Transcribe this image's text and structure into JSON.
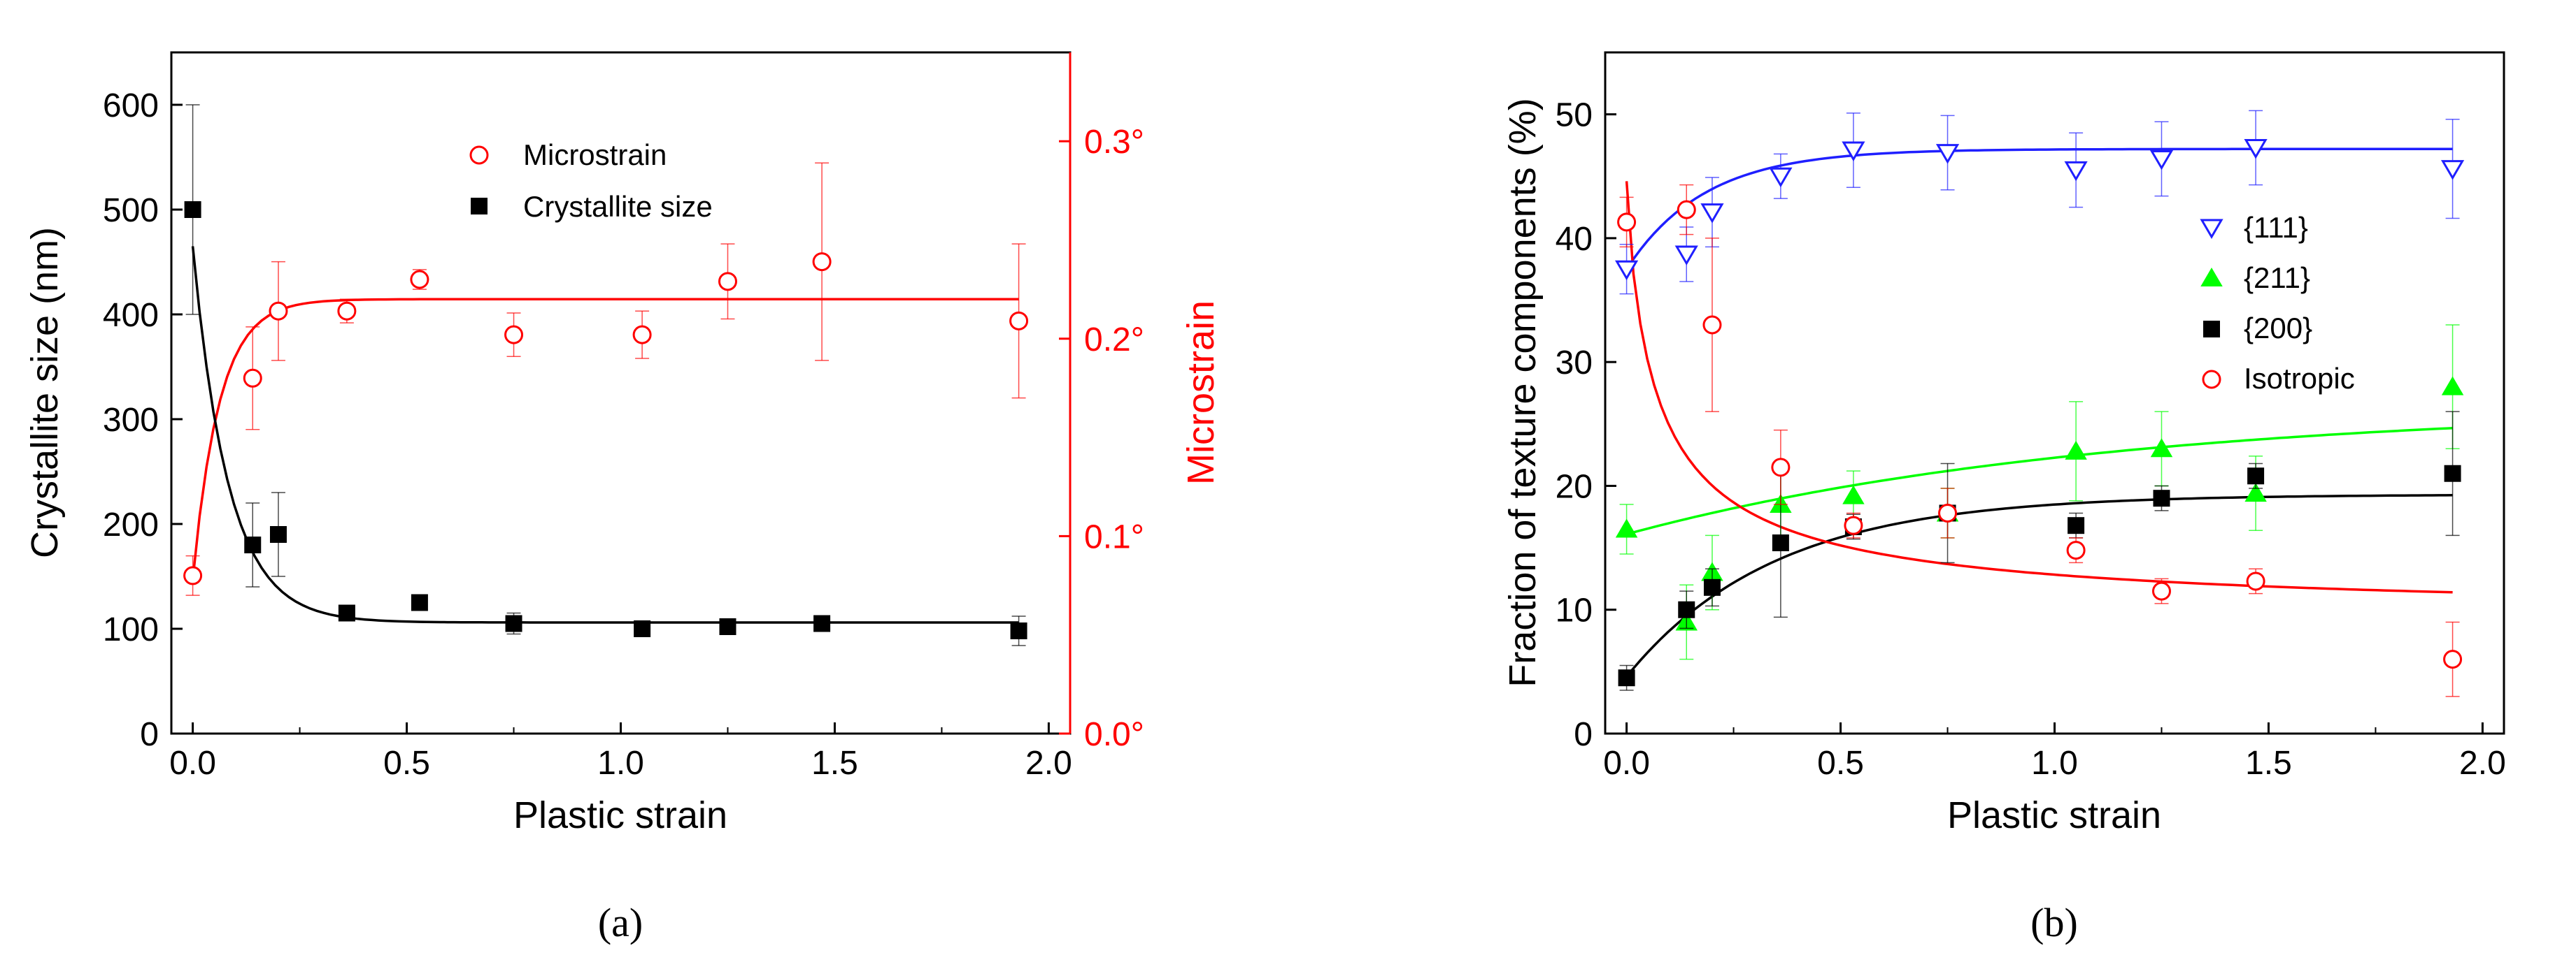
{
  "chart_data": [
    {
      "type": "scatter",
      "caption": "(a)",
      "xlabel": "Plastic strain",
      "ylabel": "Crystallite size (nm)",
      "y2label": "Microstrain",
      "xlim": [
        -0.05,
        2.05
      ],
      "ylim": [
        0,
        650
      ],
      "y2lim": [
        0,
        0.345
      ],
      "xticks": [
        "0.0",
        "0.5",
        "1.0",
        "1.5",
        "2.0"
      ],
      "yticks": [
        "0",
        "100",
        "200",
        "300",
        "400",
        "500",
        "600"
      ],
      "y2ticks": [
        "0.0°",
        "0.1°",
        "0.2°",
        "0.3°"
      ],
      "legend_position": "top-center",
      "colors": {
        "crystallite": "#000000",
        "microstrain": "#ff0000"
      },
      "series": [
        {
          "name": "Microstrain",
          "axis": "right",
          "marker": "open-circle",
          "color": "#ff0000",
          "x": [
            0.0,
            0.14,
            0.2,
            0.36,
            0.53,
            0.75,
            1.05,
            1.25,
            1.47,
            1.93
          ],
          "y": [
            0.08,
            0.18,
            0.214,
            0.214,
            0.23,
            0.202,
            0.202,
            0.229,
            0.239,
            0.209
          ],
          "err": [
            0.01,
            0.026,
            0.025,
            0.006,
            0.005,
            0.011,
            0.012,
            0.019,
            0.05,
            0.039
          ],
          "fit": "rise-to-plateau"
        },
        {
          "name": "Crystallite size",
          "axis": "left",
          "marker": "filled-square",
          "color": "#000000",
          "x": [
            0.0,
            0.14,
            0.2,
            0.36,
            0.53,
            0.75,
            1.05,
            1.25,
            1.47,
            1.93
          ],
          "y": [
            500,
            180,
            190,
            115,
            125,
            105,
            100,
            102,
            105,
            98
          ],
          "err": [
            100,
            40,
            40,
            6,
            4,
            10,
            5,
            5,
            4,
            14
          ],
          "fit": "exponential-decay"
        }
      ]
    },
    {
      "type": "scatter",
      "caption": "(b)",
      "xlabel": "Plastic strain",
      "ylabel": "Fraction of texture components (%)",
      "xlim": [
        -0.05,
        2.05
      ],
      "ylim": [
        0,
        55
      ],
      "xticks": [
        "0.0",
        "0.5",
        "1.0",
        "1.5",
        "2.0"
      ],
      "yticks": [
        "0",
        "10",
        "20",
        "30",
        "40",
        "50"
      ],
      "legend_position": "right-center",
      "series": [
        {
          "name": "{111}",
          "marker": "open-triangle-down",
          "color": "#1f1fff",
          "x": [
            0.0,
            0.14,
            0.2,
            0.36,
            0.53,
            0.75,
            1.05,
            1.25,
            1.47,
            1.93
          ],
          "y": [
            37.5,
            38.7,
            42.1,
            45.0,
            47.1,
            46.9,
            45.5,
            46.4,
            47.3,
            45.6
          ],
          "err": [
            2.0,
            2.2,
            2.8,
            1.8,
            3.0,
            3.0,
            3.0,
            3.0,
            3.0,
            4.0
          ],
          "fit": "rise-to-plateau"
        },
        {
          "name": "{211}",
          "marker": "filled-triangle-up",
          "color": "#00ff00",
          "x": [
            0.0,
            0.14,
            0.2,
            0.36,
            0.53,
            0.75,
            1.05,
            1.25,
            1.47,
            1.93
          ],
          "y": [
            16.5,
            9.0,
            13.0,
            18.5,
            19.2,
            17.8,
            22.8,
            23.0,
            19.4,
            28.0
          ],
          "err": [
            2.0,
            3.0,
            3.0,
            3.0,
            2.0,
            2.0,
            4.0,
            3.0,
            3.0,
            5.0
          ],
          "fit": "slow-rise"
        },
        {
          "name": "{200}",
          "marker": "filled-square",
          "color": "#000000",
          "x": [
            0.0,
            0.14,
            0.2,
            0.36,
            0.53,
            0.75,
            1.05,
            1.25,
            1.47,
            1.93
          ],
          "y": [
            4.5,
            10.0,
            11.8,
            15.4,
            16.7,
            17.8,
            16.8,
            19.0,
            20.8,
            21.0
          ],
          "err": [
            1.0,
            1.5,
            1.5,
            6.0,
            1.0,
            4.0,
            1.0,
            1.0,
            1.0,
            5.0
          ],
          "fit": "rise-to-plateau"
        },
        {
          "name": "Isotropic",
          "marker": "open-circle",
          "color": "#ff0000",
          "x": [
            0.0,
            0.14,
            0.2,
            0.36,
            0.53,
            0.75,
            1.05,
            1.25,
            1.47,
            1.93
          ],
          "y": [
            41.3,
            42.3,
            33.0,
            21.5,
            16.8,
            17.8,
            14.8,
            11.5,
            12.3,
            6.0
          ],
          "err": [
            2.0,
            2.0,
            7.0,
            3.0,
            1.0,
            2.0,
            1.0,
            1.0,
            1.0,
            3.0
          ],
          "fit": "decay"
        }
      ]
    }
  ]
}
